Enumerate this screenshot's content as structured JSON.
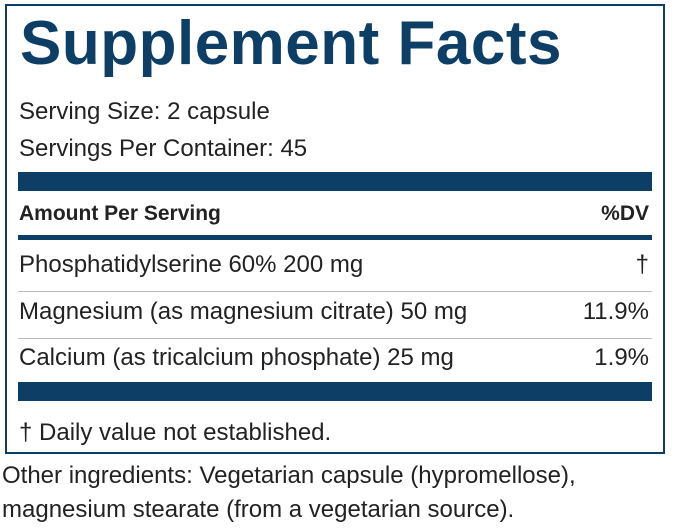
{
  "label": {
    "title": "Supplement Facts",
    "serving_size": "Serving Size: 2 capsule",
    "servings_per_container": "Servings Per Container: 45",
    "header": {
      "amount": "Amount Per Serving",
      "dv": "%DV"
    },
    "rows": [
      {
        "name": "Phosphatidylserine 60% 200 mg",
        "dv": "†"
      },
      {
        "name": "Magnesium (as magnesium citrate) 50 mg",
        "dv": "11.9%"
      },
      {
        "name": "Calcium (as tricalcium phosphate) 25 mg",
        "dv": "1.9%"
      }
    ],
    "footnote": "† Daily value not established."
  },
  "other_ingredients": [
    "Other ingredients: Vegetarian capsule (hypromellose),",
    "magnesium stearate (from a vegetarian source)."
  ]
}
